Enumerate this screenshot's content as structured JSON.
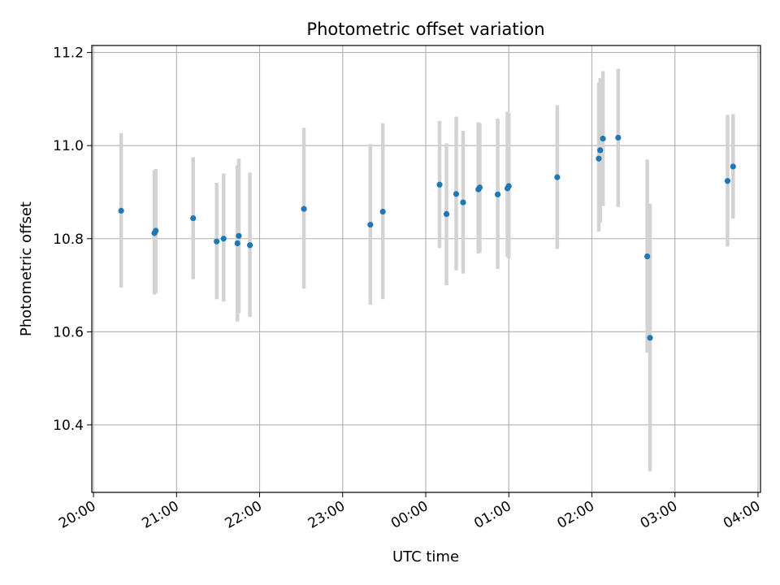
{
  "chart_data": {
    "type": "scatter",
    "title": "Photometric offset variation",
    "xlabel": "UTC time",
    "ylabel": "Photometric offset",
    "grid": true,
    "x_tick_labels": [
      "20:00",
      "21:00",
      "22:00",
      "23:00",
      "00:00",
      "01:00",
      "02:00",
      "03:00",
      "04:00"
    ],
    "x_tick_hours": [
      0,
      1,
      2,
      3,
      4,
      5,
      6,
      7,
      8
    ],
    "y_ticks": [
      10.4,
      10.6,
      10.8,
      11.0,
      11.2
    ],
    "y_tick_labels": [
      "10.4",
      "10.6",
      "10.8",
      "11.0",
      "11.2"
    ],
    "xlim_hours_since_20": [
      -0.02,
      8.03
    ],
    "ylim": [
      10.255,
      11.215
    ],
    "point_color": "#1f77b4",
    "errorbar_color": "#d3d3d3",
    "points": [
      {
        "t": "20:20",
        "y": 10.86,
        "lo": 10.695,
        "hi": 11.027
      },
      {
        "t": "20:44",
        "y": 10.812,
        "lo": 10.68,
        "hi": 10.947
      },
      {
        "t": "20:45",
        "y": 10.817,
        "lo": 10.683,
        "hi": 10.95
      },
      {
        "t": "21:12",
        "y": 10.844,
        "lo": 10.713,
        "hi": 10.975
      },
      {
        "t": "21:29",
        "y": 10.794,
        "lo": 10.67,
        "hi": 10.92
      },
      {
        "t": "21:34",
        "y": 10.8,
        "lo": 10.665,
        "hi": 10.94
      },
      {
        "t": "21:44",
        "y": 10.79,
        "lo": 10.622,
        "hi": 10.958
      },
      {
        "t": "21:45",
        "y": 10.806,
        "lo": 10.64,
        "hi": 10.972
      },
      {
        "t": "21:53",
        "y": 10.786,
        "lo": 10.632,
        "hi": 10.942
      },
      {
        "t": "22:32",
        "y": 10.864,
        "lo": 10.693,
        "hi": 11.038
      },
      {
        "t": "23:20",
        "y": 10.83,
        "lo": 10.658,
        "hi": 11.003
      },
      {
        "t": "23:29",
        "y": 10.858,
        "lo": 10.67,
        "hi": 11.048
      },
      {
        "t": "00:10",
        "y": 10.916,
        "lo": 10.78,
        "hi": 11.053
      },
      {
        "t": "00:15",
        "y": 10.853,
        "lo": 10.7,
        "hi": 11.005
      },
      {
        "t": "00:22",
        "y": 10.896,
        "lo": 10.732,
        "hi": 11.062
      },
      {
        "t": "00:27",
        "y": 10.878,
        "lo": 10.725,
        "hi": 11.032
      },
      {
        "t": "00:38",
        "y": 10.906,
        "lo": 10.768,
        "hi": 11.05
      },
      {
        "t": "00:39",
        "y": 10.91,
        "lo": 10.77,
        "hi": 11.048
      },
      {
        "t": "00:52",
        "y": 10.895,
        "lo": 10.735,
        "hi": 11.058
      },
      {
        "t": "00:59",
        "y": 10.908,
        "lo": 10.76,
        "hi": 11.073
      },
      {
        "t": "01:00",
        "y": 10.913,
        "lo": 10.758,
        "hi": 11.07
      },
      {
        "t": "01:35",
        "y": 10.932,
        "lo": 10.778,
        "hi": 11.087
      },
      {
        "t": "02:05",
        "y": 10.972,
        "lo": 10.815,
        "hi": 11.135
      },
      {
        "t": "02:06",
        "y": 10.99,
        "lo": 10.835,
        "hi": 11.145
      },
      {
        "t": "02:08",
        "y": 11.015,
        "lo": 10.87,
        "hi": 11.16
      },
      {
        "t": "02:19",
        "y": 11.017,
        "lo": 10.868,
        "hi": 11.165
      },
      {
        "t": "02:40",
        "y": 10.762,
        "lo": 10.555,
        "hi": 10.97
      },
      {
        "t": "02:42",
        "y": 10.587,
        "lo": 10.3,
        "hi": 10.875
      },
      {
        "t": "03:38",
        "y": 10.924,
        "lo": 10.783,
        "hi": 11.066
      },
      {
        "t": "03:42",
        "y": 10.955,
        "lo": 10.843,
        "hi": 11.068
      }
    ]
  }
}
